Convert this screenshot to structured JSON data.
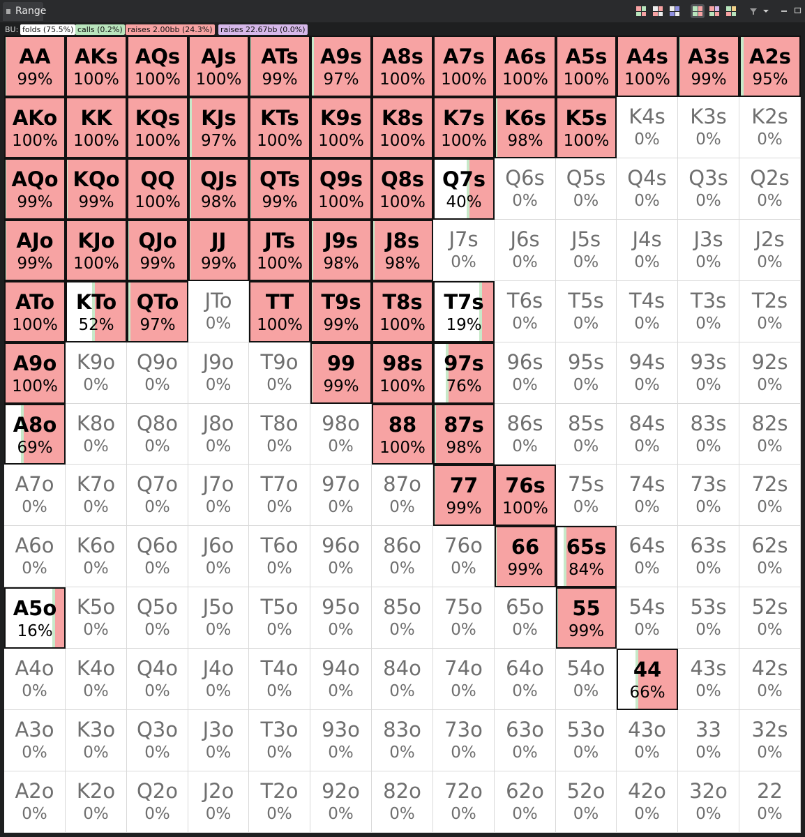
{
  "window": {
    "tab_label": "Range"
  },
  "toolbar": {
    "filter_icon": "filter-icon",
    "dropdown_icon": "chevron-down-icon"
  },
  "legend": {
    "position": "BU:",
    "items": [
      {
        "label": "folds (75.5%)",
        "color": "#ffffff"
      },
      {
        "label": "calls (0.2%)",
        "color": "#b9e5bd"
      },
      {
        "label": "raises 2.00bb (24.3%)",
        "color": "#f7a3a3"
      },
      {
        "label": "raises 22.67bb (0.0%)",
        "color": "#d6b8ea"
      }
    ]
  },
  "grid": {
    "rows": [
      [
        {
          "hand": "AA",
          "pct": "99%"
        },
        {
          "hand": "AKs",
          "pct": "100%"
        },
        {
          "hand": "AQs",
          "pct": "100%"
        },
        {
          "hand": "AJs",
          "pct": "100%"
        },
        {
          "hand": "ATs",
          "pct": "99%"
        },
        {
          "hand": "A9s",
          "pct": "97%"
        },
        {
          "hand": "A8s",
          "pct": "100%"
        },
        {
          "hand": "A7s",
          "pct": "100%"
        },
        {
          "hand": "A6s",
          "pct": "100%"
        },
        {
          "hand": "A5s",
          "pct": "100%"
        },
        {
          "hand": "A4s",
          "pct": "100%"
        },
        {
          "hand": "A3s",
          "pct": "99%"
        },
        {
          "hand": "A2s",
          "pct": "95%"
        }
      ],
      [
        {
          "hand": "AKo",
          "pct": "100%"
        },
        {
          "hand": "KK",
          "pct": "100%"
        },
        {
          "hand": "KQs",
          "pct": "100%"
        },
        {
          "hand": "KJs",
          "pct": "97%"
        },
        {
          "hand": "KTs",
          "pct": "100%"
        },
        {
          "hand": "K9s",
          "pct": "100%"
        },
        {
          "hand": "K8s",
          "pct": "100%"
        },
        {
          "hand": "K7s",
          "pct": "100%"
        },
        {
          "hand": "K6s",
          "pct": "98%"
        },
        {
          "hand": "K5s",
          "pct": "100%"
        },
        {
          "hand": "K4s",
          "pct": "0%"
        },
        {
          "hand": "K3s",
          "pct": "0%"
        },
        {
          "hand": "K2s",
          "pct": "0%"
        }
      ],
      [
        {
          "hand": "AQo",
          "pct": "99%"
        },
        {
          "hand": "KQo",
          "pct": "99%"
        },
        {
          "hand": "QQ",
          "pct": "100%"
        },
        {
          "hand": "QJs",
          "pct": "98%"
        },
        {
          "hand": "QTs",
          "pct": "99%"
        },
        {
          "hand": "Q9s",
          "pct": "100%"
        },
        {
          "hand": "Q8s",
          "pct": "100%"
        },
        {
          "hand": "Q7s",
          "pct": "40%"
        },
        {
          "hand": "Q6s",
          "pct": "0%"
        },
        {
          "hand": "Q5s",
          "pct": "0%"
        },
        {
          "hand": "Q4s",
          "pct": "0%"
        },
        {
          "hand": "Q3s",
          "pct": "0%"
        },
        {
          "hand": "Q2s",
          "pct": "0%"
        }
      ],
      [
        {
          "hand": "AJo",
          "pct": "99%"
        },
        {
          "hand": "KJo",
          "pct": "100%"
        },
        {
          "hand": "QJo",
          "pct": "99%"
        },
        {
          "hand": "JJ",
          "pct": "99%"
        },
        {
          "hand": "JTs",
          "pct": "100%"
        },
        {
          "hand": "J9s",
          "pct": "98%"
        },
        {
          "hand": "J8s",
          "pct": "98%"
        },
        {
          "hand": "J7s",
          "pct": "0%"
        },
        {
          "hand": "J6s",
          "pct": "0%"
        },
        {
          "hand": "J5s",
          "pct": "0%"
        },
        {
          "hand": "J4s",
          "pct": "0%"
        },
        {
          "hand": "J3s",
          "pct": "0%"
        },
        {
          "hand": "J2s",
          "pct": "0%"
        }
      ],
      [
        {
          "hand": "ATo",
          "pct": "100%"
        },
        {
          "hand": "KTo",
          "pct": "52%"
        },
        {
          "hand": "QTo",
          "pct": "97%"
        },
        {
          "hand": "JTo",
          "pct": "0%"
        },
        {
          "hand": "TT",
          "pct": "100%"
        },
        {
          "hand": "T9s",
          "pct": "99%"
        },
        {
          "hand": "T8s",
          "pct": "100%"
        },
        {
          "hand": "T7s",
          "pct": "19%"
        },
        {
          "hand": "T6s",
          "pct": "0%"
        },
        {
          "hand": "T5s",
          "pct": "0%"
        },
        {
          "hand": "T4s",
          "pct": "0%"
        },
        {
          "hand": "T3s",
          "pct": "0%"
        },
        {
          "hand": "T2s",
          "pct": "0%"
        }
      ],
      [
        {
          "hand": "A9o",
          "pct": "100%"
        },
        {
          "hand": "K9o",
          "pct": "0%"
        },
        {
          "hand": "Q9o",
          "pct": "0%"
        },
        {
          "hand": "J9o",
          "pct": "0%"
        },
        {
          "hand": "T9o",
          "pct": "0%"
        },
        {
          "hand": "99",
          "pct": "99%"
        },
        {
          "hand": "98s",
          "pct": "100%"
        },
        {
          "hand": "97s",
          "pct": "76%"
        },
        {
          "hand": "96s",
          "pct": "0%"
        },
        {
          "hand": "95s",
          "pct": "0%"
        },
        {
          "hand": "94s",
          "pct": "0%"
        },
        {
          "hand": "93s",
          "pct": "0%"
        },
        {
          "hand": "92s",
          "pct": "0%"
        }
      ],
      [
        {
          "hand": "A8o",
          "pct": "69%"
        },
        {
          "hand": "K8o",
          "pct": "0%"
        },
        {
          "hand": "Q8o",
          "pct": "0%"
        },
        {
          "hand": "J8o",
          "pct": "0%"
        },
        {
          "hand": "T8o",
          "pct": "0%"
        },
        {
          "hand": "98o",
          "pct": "0%"
        },
        {
          "hand": "88",
          "pct": "100%"
        },
        {
          "hand": "87s",
          "pct": "98%"
        },
        {
          "hand": "86s",
          "pct": "0%"
        },
        {
          "hand": "85s",
          "pct": "0%"
        },
        {
          "hand": "84s",
          "pct": "0%"
        },
        {
          "hand": "83s",
          "pct": "0%"
        },
        {
          "hand": "82s",
          "pct": "0%"
        }
      ],
      [
        {
          "hand": "A7o",
          "pct": "0%"
        },
        {
          "hand": "K7o",
          "pct": "0%"
        },
        {
          "hand": "Q7o",
          "pct": "0%"
        },
        {
          "hand": "J7o",
          "pct": "0%"
        },
        {
          "hand": "T7o",
          "pct": "0%"
        },
        {
          "hand": "97o",
          "pct": "0%"
        },
        {
          "hand": "87o",
          "pct": "0%"
        },
        {
          "hand": "77",
          "pct": "99%"
        },
        {
          "hand": "76s",
          "pct": "100%"
        },
        {
          "hand": "75s",
          "pct": "0%"
        },
        {
          "hand": "74s",
          "pct": "0%"
        },
        {
          "hand": "73s",
          "pct": "0%"
        },
        {
          "hand": "72s",
          "pct": "0%"
        }
      ],
      [
        {
          "hand": "A6o",
          "pct": "0%"
        },
        {
          "hand": "K6o",
          "pct": "0%"
        },
        {
          "hand": "Q6o",
          "pct": "0%"
        },
        {
          "hand": "J6o",
          "pct": "0%"
        },
        {
          "hand": "T6o",
          "pct": "0%"
        },
        {
          "hand": "96o",
          "pct": "0%"
        },
        {
          "hand": "86o",
          "pct": "0%"
        },
        {
          "hand": "76o",
          "pct": "0%"
        },
        {
          "hand": "66",
          "pct": "99%"
        },
        {
          "hand": "65s",
          "pct": "84%"
        },
        {
          "hand": "64s",
          "pct": "0%"
        },
        {
          "hand": "63s",
          "pct": "0%"
        },
        {
          "hand": "62s",
          "pct": "0%"
        }
      ],
      [
        {
          "hand": "A5o",
          "pct": "16%"
        },
        {
          "hand": "K5o",
          "pct": "0%"
        },
        {
          "hand": "Q5o",
          "pct": "0%"
        },
        {
          "hand": "J5o",
          "pct": "0%"
        },
        {
          "hand": "T5o",
          "pct": "0%"
        },
        {
          "hand": "95o",
          "pct": "0%"
        },
        {
          "hand": "85o",
          "pct": "0%"
        },
        {
          "hand": "75o",
          "pct": "0%"
        },
        {
          "hand": "65o",
          "pct": "0%"
        },
        {
          "hand": "55",
          "pct": "99%"
        },
        {
          "hand": "54s",
          "pct": "0%"
        },
        {
          "hand": "53s",
          "pct": "0%"
        },
        {
          "hand": "52s",
          "pct": "0%"
        }
      ],
      [
        {
          "hand": "A4o",
          "pct": "0%"
        },
        {
          "hand": "K4o",
          "pct": "0%"
        },
        {
          "hand": "Q4o",
          "pct": "0%"
        },
        {
          "hand": "J4o",
          "pct": "0%"
        },
        {
          "hand": "T4o",
          "pct": "0%"
        },
        {
          "hand": "94o",
          "pct": "0%"
        },
        {
          "hand": "84o",
          "pct": "0%"
        },
        {
          "hand": "74o",
          "pct": "0%"
        },
        {
          "hand": "64o",
          "pct": "0%"
        },
        {
          "hand": "54o",
          "pct": "0%"
        },
        {
          "hand": "44",
          "pct": "66%"
        },
        {
          "hand": "43s",
          "pct": "0%"
        },
        {
          "hand": "42s",
          "pct": "0%"
        }
      ],
      [
        {
          "hand": "A3o",
          "pct": "0%"
        },
        {
          "hand": "K3o",
          "pct": "0%"
        },
        {
          "hand": "Q3o",
          "pct": "0%"
        },
        {
          "hand": "J3o",
          "pct": "0%"
        },
        {
          "hand": "T3o",
          "pct": "0%"
        },
        {
          "hand": "93o",
          "pct": "0%"
        },
        {
          "hand": "83o",
          "pct": "0%"
        },
        {
          "hand": "73o",
          "pct": "0%"
        },
        {
          "hand": "63o",
          "pct": "0%"
        },
        {
          "hand": "53o",
          "pct": "0%"
        },
        {
          "hand": "43o",
          "pct": "0%"
        },
        {
          "hand": "33",
          "pct": "0%"
        },
        {
          "hand": "32s",
          "pct": "0%"
        }
      ],
      [
        {
          "hand": "A2o",
          "pct": "0%"
        },
        {
          "hand": "K2o",
          "pct": "0%"
        },
        {
          "hand": "Q2o",
          "pct": "0%"
        },
        {
          "hand": "J2o",
          "pct": "0%"
        },
        {
          "hand": "T2o",
          "pct": "0%"
        },
        {
          "hand": "92o",
          "pct": "0%"
        },
        {
          "hand": "82o",
          "pct": "0%"
        },
        {
          "hand": "72o",
          "pct": "0%"
        },
        {
          "hand": "62o",
          "pct": "0%"
        },
        {
          "hand": "52o",
          "pct": "0%"
        },
        {
          "hand": "42o",
          "pct": "0%"
        },
        {
          "hand": "32o",
          "pct": "0%"
        },
        {
          "hand": "22",
          "pct": "0%"
        }
      ]
    ]
  }
}
